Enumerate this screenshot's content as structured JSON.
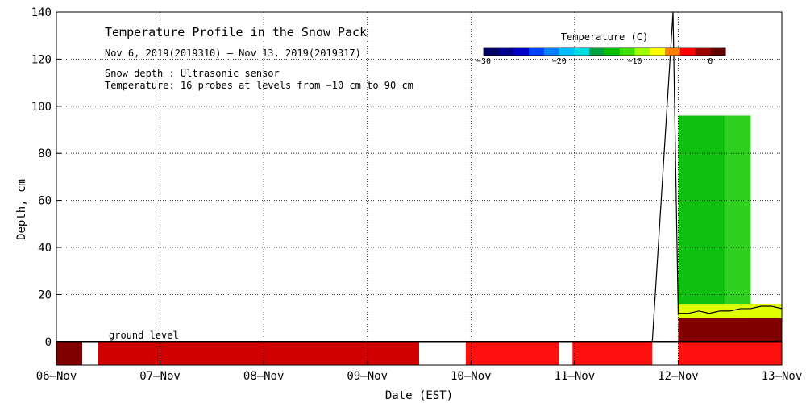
{
  "chart_data": {
    "type": "heatmap",
    "title": "Temperature Profile in the Snow Pack",
    "subtitle": "Nov  6, 2019(2019310) – Nov 13, 2019(2019317)",
    "notes": [
      "Snow depth : Ultrasonic sensor",
      "Temperature: 16 probes at levels from −10 cm to 90 cm"
    ],
    "annotation": "ground level",
    "xlabel": "Date (EST)",
    "ylabel": "Depth, cm",
    "x_ticks": [
      "06–Nov",
      "07–Nov",
      "08–Nov",
      "09–Nov",
      "10–Nov",
      "11–Nov",
      "12–Nov",
      "13–Nov"
    ],
    "xlim_days": [
      0,
      7
    ],
    "y_ticks": [
      0,
      20,
      40,
      60,
      80,
      100,
      120,
      140
    ],
    "ylim": [
      -10,
      140
    ],
    "grid": true,
    "colorbar": {
      "title": "Temperature (C)",
      "ticks": [
        "−30",
        "−20",
        "−10",
        "0"
      ],
      "range": [
        -30,
        2
      ],
      "colors": [
        "#000060",
        "#00008c",
        "#0000c8",
        "#0040ff",
        "#0080ff",
        "#00c0ff",
        "#00e0e0",
        "#00a040",
        "#00c000",
        "#40e000",
        "#a0ff00",
        "#ffff00",
        "#ff8000",
        "#ff0000",
        "#a00000",
        "#600000"
      ]
    },
    "temperature_segments": [
      {
        "day_start": 0.0,
        "day_end": 0.25,
        "color": "#800000",
        "label": "warm"
      },
      {
        "day_start": 0.25,
        "day_end": 0.4,
        "color": "#ffffff",
        "label": "no data"
      },
      {
        "day_start": 0.4,
        "day_end": 3.5,
        "color": "#d00000",
        "label": "warm"
      },
      {
        "day_start": 3.5,
        "day_end": 3.95,
        "color": "#ffffff",
        "label": "no data"
      },
      {
        "day_start": 3.95,
        "day_end": 4.85,
        "color": "#ff1010",
        "label": "warm"
      },
      {
        "day_start": 4.85,
        "day_end": 4.98,
        "color": "#ffffff",
        "label": "no data"
      },
      {
        "day_start": 4.98,
        "day_end": 5.75,
        "color": "#ff1010",
        "label": "warm"
      },
      {
        "day_start": 5.75,
        "day_end": 6.0,
        "color": "#ffffff",
        "label": "no data"
      },
      {
        "day_start": 6.0,
        "day_end": 7.0,
        "color": "#ff1010",
        "label": "warm"
      }
    ],
    "snow_depth": {
      "x_days": [
        5.75,
        5.95,
        6.0,
        6.1,
        6.2,
        6.3,
        6.4,
        6.5,
        6.6,
        6.7,
        6.8,
        6.9,
        7.0
      ],
      "y_cm": [
        0,
        140,
        12,
        12,
        13,
        12,
        13,
        13,
        14,
        14,
        15,
        15,
        14
      ]
    }
  }
}
